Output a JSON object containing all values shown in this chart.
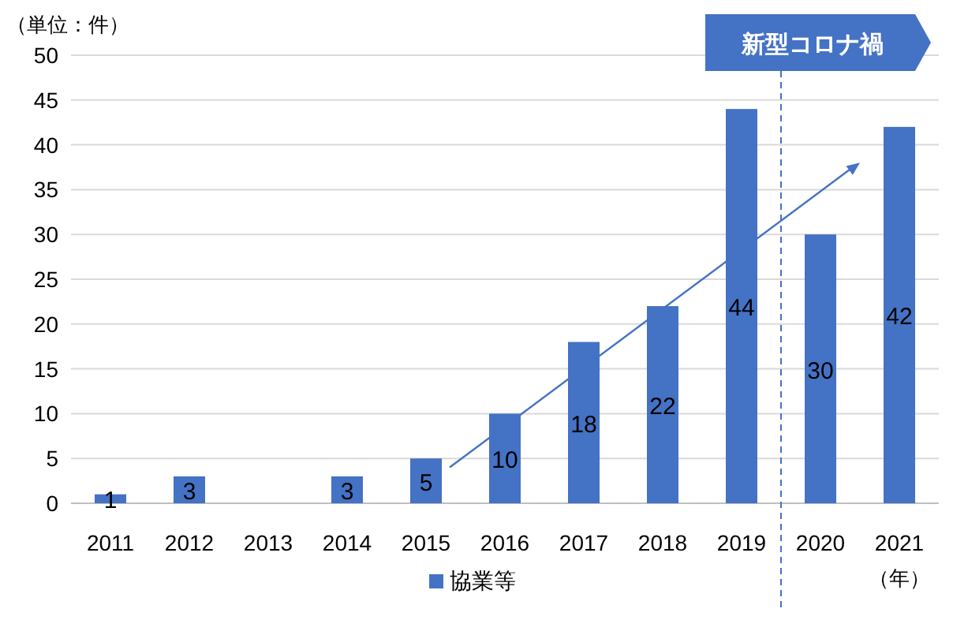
{
  "chart_data": {
    "type": "bar",
    "x": [
      2011,
      2012,
      2013,
      2014,
      2015,
      2016,
      2017,
      2018,
      2019,
      2020,
      2021
    ],
    "series": [
      {
        "name": "協業等",
        "color": "#4472c4",
        "values": [
          1,
          3,
          null,
          3,
          5,
          10,
          18,
          22,
          44,
          30,
          42
        ]
      }
    ],
    "xlim": [
      2010.5,
      2021.5
    ],
    "xticks": [
      2011,
      2012,
      2013,
      2014,
      2015,
      2016,
      2017,
      2018,
      2019,
      2020,
      2021
    ],
    "ylim": [
      0,
      50
    ],
    "yticks": [
      0,
      5,
      10,
      15,
      20,
      25,
      30,
      35,
      40,
      45,
      50
    ],
    "grid": "y",
    "legend": "bottom",
    "data_labels": true,
    "ref_lines": [
      {
        "axis": "x",
        "value": 2019.5,
        "label": "新型コロナ禍",
        "line_style": "dashed",
        "color": "#4472c4"
      }
    ],
    "annotations": [
      "（単位：件）",
      "（年）"
    ]
  }
}
